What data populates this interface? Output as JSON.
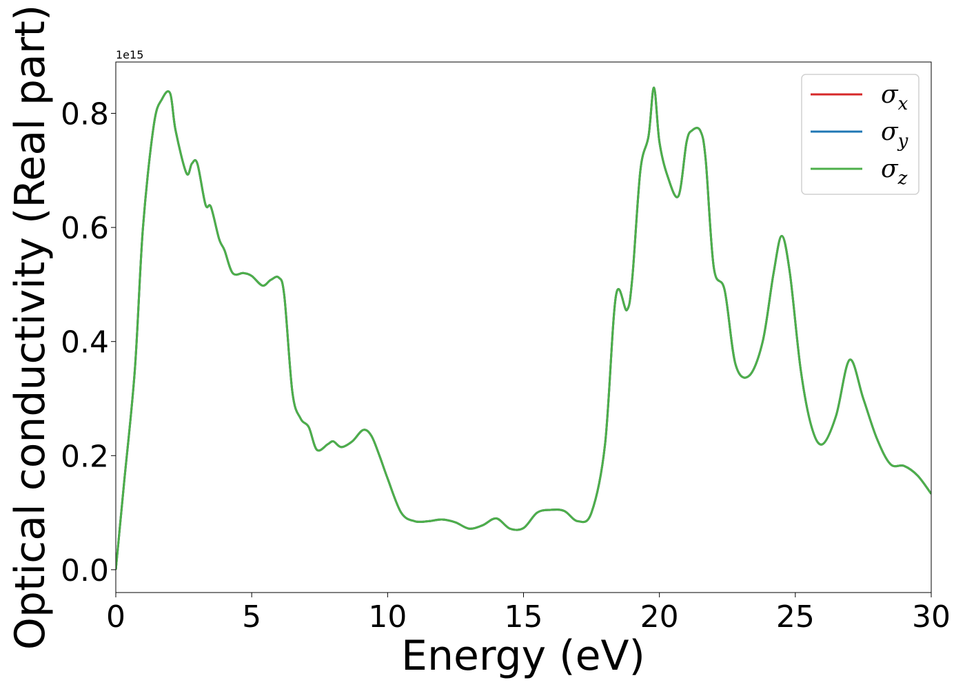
{
  "chart_data": {
    "type": "line",
    "xlabel": "Energy (eV)",
    "ylabel": "Optical conductivity (Real part)",
    "y_offset_text": "1e15",
    "xlim": [
      0,
      30
    ],
    "ylim": [
      -0.04,
      0.89
    ],
    "y_scale_factor": "1e15",
    "x_ticks": [
      0,
      5,
      10,
      15,
      20,
      25,
      30
    ],
    "x_tick_labels": [
      "0",
      "5",
      "10",
      "15",
      "20",
      "25",
      "30"
    ],
    "y_ticks": [
      0.0,
      0.2,
      0.4,
      0.6,
      0.8
    ],
    "y_tick_labels": [
      "0.0",
      "0.2",
      "0.4",
      "0.6",
      "0.8"
    ],
    "grid": false,
    "legend_position": "top-right",
    "legend": [
      {
        "base": "σ",
        "sub": "x",
        "color": "#d62728"
      },
      {
        "base": "σ",
        "sub": "y",
        "color": "#1f77b4"
      },
      {
        "base": "σ",
        "sub": "z",
        "color": "#4daf4a"
      }
    ],
    "x": [
      0,
      0.3,
      0.7,
      1.0,
      1.4,
      1.7,
      2.0,
      2.2,
      2.6,
      2.8,
      3.0,
      3.3,
      3.5,
      3.8,
      4.0,
      4.3,
      4.7,
      5.0,
      5.4,
      5.7,
      6.0,
      6.2,
      6.5,
      6.8,
      7.1,
      7.4,
      7.8,
      8.0,
      8.3,
      8.7,
      9.1,
      9.4,
      9.7,
      10.0,
      10.5,
      11.0,
      11.5,
      12.0,
      12.5,
      13.0,
      13.5,
      14.0,
      14.5,
      15.0,
      15.5,
      16.0,
      16.5,
      17.0,
      17.5,
      18.0,
      18.4,
      18.8,
      19.0,
      19.3,
      19.6,
      19.8,
      20.0,
      20.3,
      20.7,
      21.0,
      21.2,
      21.5,
      21.7,
      22.0,
      22.4,
      22.8,
      23.3,
      23.8,
      24.2,
      24.5,
      24.8,
      25.2,
      25.6,
      26.0,
      26.5,
      27.0,
      27.5,
      28.0,
      28.5,
      29.0,
      29.5,
      30.0
    ],
    "series": [
      {
        "name": "σx",
        "color": "#d62728",
        "y": [
          0.0,
          0.15,
          0.35,
          0.6,
          0.78,
          0.825,
          0.835,
          0.77,
          0.695,
          0.712,
          0.712,
          0.64,
          0.636,
          0.58,
          0.56,
          0.52,
          0.52,
          0.515,
          0.498,
          0.508,
          0.512,
          0.48,
          0.31,
          0.265,
          0.25,
          0.21,
          0.22,
          0.225,
          0.215,
          0.225,
          0.245,
          0.235,
          0.2,
          0.16,
          0.1,
          0.085,
          0.085,
          0.088,
          0.083,
          0.072,
          0.078,
          0.09,
          0.072,
          0.073,
          0.1,
          0.105,
          0.103,
          0.085,
          0.1,
          0.22,
          0.48,
          0.455,
          0.51,
          0.7,
          0.76,
          0.845,
          0.75,
          0.69,
          0.655,
          0.75,
          0.77,
          0.77,
          0.72,
          0.53,
          0.49,
          0.36,
          0.34,
          0.4,
          0.52,
          0.585,
          0.52,
          0.35,
          0.25,
          0.22,
          0.27,
          0.368,
          0.3,
          0.23,
          0.185,
          0.182,
          0.165,
          0.133
        ]
      },
      {
        "name": "σy",
        "color": "#1f77b4",
        "y": [
          0.0,
          0.15,
          0.35,
          0.6,
          0.78,
          0.825,
          0.835,
          0.77,
          0.695,
          0.712,
          0.712,
          0.64,
          0.636,
          0.58,
          0.56,
          0.52,
          0.52,
          0.515,
          0.498,
          0.508,
          0.512,
          0.48,
          0.31,
          0.265,
          0.25,
          0.21,
          0.22,
          0.225,
          0.215,
          0.225,
          0.245,
          0.235,
          0.2,
          0.16,
          0.1,
          0.085,
          0.085,
          0.088,
          0.083,
          0.072,
          0.078,
          0.09,
          0.072,
          0.073,
          0.1,
          0.105,
          0.103,
          0.085,
          0.1,
          0.22,
          0.48,
          0.455,
          0.51,
          0.7,
          0.76,
          0.845,
          0.75,
          0.69,
          0.655,
          0.75,
          0.77,
          0.77,
          0.72,
          0.53,
          0.49,
          0.36,
          0.34,
          0.4,
          0.52,
          0.585,
          0.52,
          0.35,
          0.25,
          0.22,
          0.27,
          0.368,
          0.3,
          0.23,
          0.185,
          0.182,
          0.165,
          0.133
        ]
      },
      {
        "name": "σz",
        "color": "#4daf4a",
        "y": [
          0.0,
          0.15,
          0.35,
          0.6,
          0.78,
          0.825,
          0.835,
          0.77,
          0.695,
          0.712,
          0.712,
          0.64,
          0.636,
          0.58,
          0.56,
          0.52,
          0.52,
          0.515,
          0.498,
          0.508,
          0.512,
          0.48,
          0.31,
          0.265,
          0.25,
          0.21,
          0.22,
          0.225,
          0.215,
          0.225,
          0.245,
          0.235,
          0.2,
          0.16,
          0.1,
          0.085,
          0.085,
          0.088,
          0.083,
          0.072,
          0.078,
          0.09,
          0.072,
          0.073,
          0.1,
          0.105,
          0.103,
          0.085,
          0.1,
          0.22,
          0.48,
          0.455,
          0.51,
          0.7,
          0.76,
          0.845,
          0.75,
          0.69,
          0.655,
          0.75,
          0.77,
          0.77,
          0.72,
          0.53,
          0.49,
          0.36,
          0.34,
          0.4,
          0.52,
          0.585,
          0.52,
          0.35,
          0.25,
          0.22,
          0.27,
          0.368,
          0.3,
          0.23,
          0.185,
          0.182,
          0.165,
          0.133
        ]
      }
    ]
  }
}
